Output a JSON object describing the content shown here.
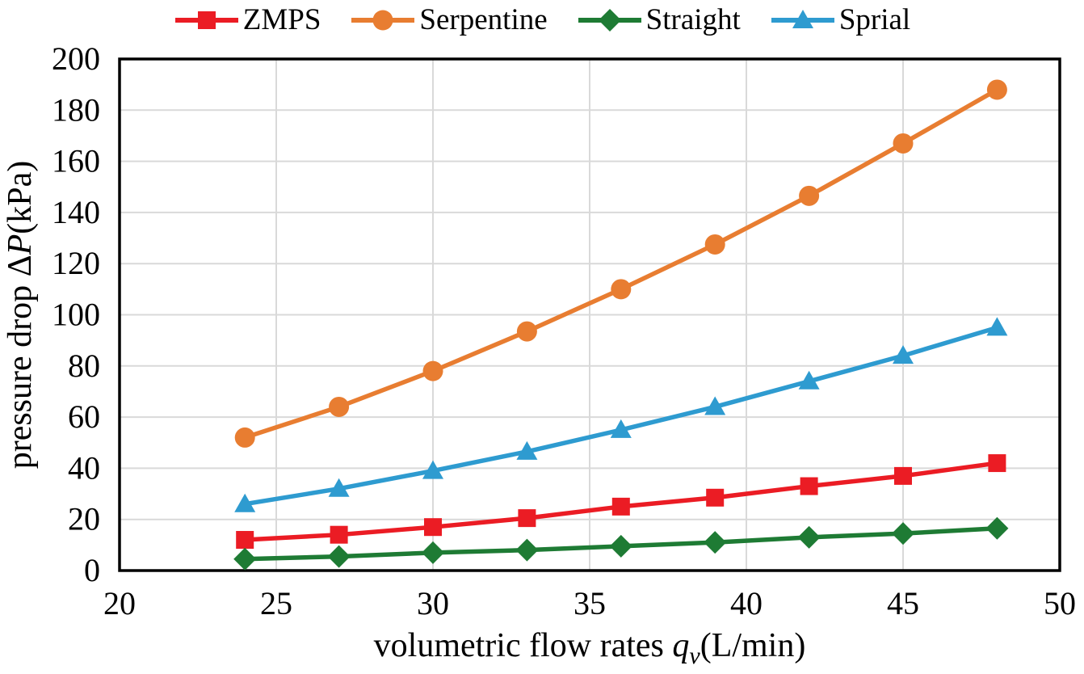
{
  "chart_data": {
    "type": "line",
    "title": "",
    "x": [
      24,
      27,
      30,
      33,
      36,
      39,
      42,
      45,
      48
    ],
    "series": [
      {
        "name": "ZMPS",
        "color": "#EB1C24",
        "marker": "square",
        "values": [
          12,
          14,
          17,
          20.5,
          25,
          28.5,
          33,
          37,
          42
        ]
      },
      {
        "name": "Serpentine",
        "color": "#E87D31",
        "marker": "circle",
        "values": [
          52,
          64,
          78,
          93.5,
          110,
          127.5,
          146.5,
          167,
          188
        ]
      },
      {
        "name": "Straight",
        "color": "#1E7B34",
        "marker": "diamond",
        "values": [
          4.5,
          5.5,
          7,
          8,
          9.5,
          11,
          13,
          14.5,
          16.5
        ]
      },
      {
        "name": "Sprial",
        "color": "#2E9BD0",
        "marker": "triangle",
        "values": [
          26,
          32,
          39,
          46.5,
          55,
          64,
          74,
          84,
          95
        ]
      }
    ],
    "xlabel": {
      "prefix": "volumetric flow rates ",
      "var": "q",
      "sub": "v",
      "suffix": "(L/min)"
    },
    "ylabel": {
      "prefix": "pressure drop Δ",
      "var": "P",
      "sub": "",
      "suffix": "(kPa)"
    },
    "xlim": [
      20,
      50
    ],
    "ylim": [
      0,
      200
    ],
    "xticks": [
      20,
      25,
      30,
      35,
      40,
      45,
      50
    ],
    "yticks": [
      0,
      20,
      40,
      60,
      80,
      100,
      120,
      140,
      160,
      180,
      200
    ],
    "grid": true,
    "legend_position": "top"
  },
  "style_colors": {
    "grid": "#D9D9D9",
    "plot_border": "#000000",
    "background": "#FFFFFF",
    "text": "#000000"
  }
}
